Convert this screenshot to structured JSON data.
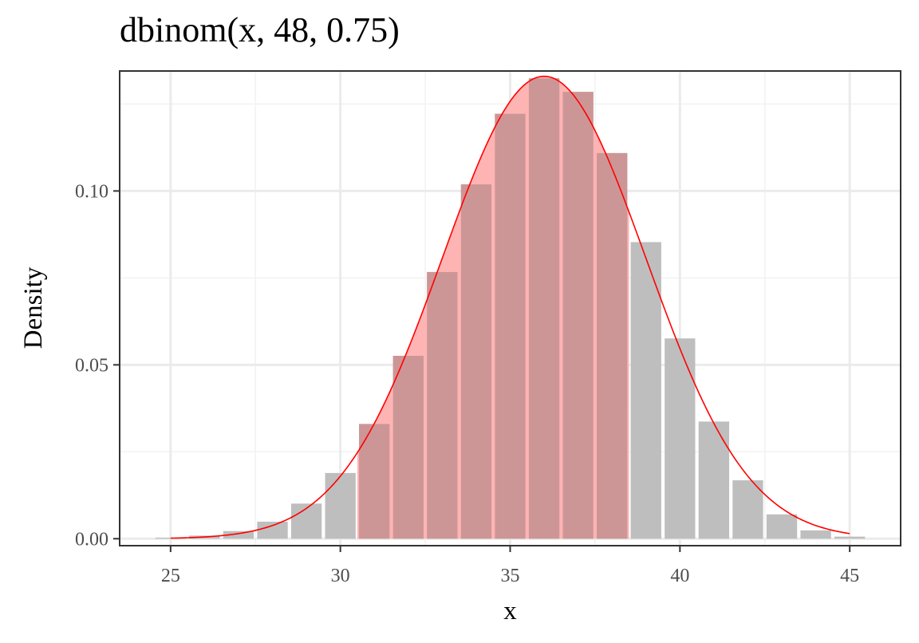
{
  "chart_data": {
    "type": "bar",
    "title": "dbinom(x, 48, 0.75)",
    "xlabel": "x",
    "ylabel": "Density",
    "xlim": [
      23.5,
      46.5
    ],
    "ylim": [
      -0.002,
      0.1345
    ],
    "x_ticks": [
      25,
      30,
      35,
      40,
      45
    ],
    "x_tick_labels": [
      "25",
      "30",
      "35",
      "40",
      "45"
    ],
    "y_ticks": [
      0.0,
      0.05,
      0.1
    ],
    "y_tick_labels": [
      "0.00",
      "0.05",
      "0.10"
    ],
    "grid": true,
    "series": [
      {
        "kind": "bar",
        "x": [
          25,
          26,
          27,
          28,
          29,
          30,
          31,
          32,
          33,
          34,
          35,
          36,
          37,
          38,
          39,
          40,
          41,
          42,
          43,
          44,
          45
        ],
        "values": [
          0.0003,
          0.0009,
          0.0022,
          0.0049,
          0.0101,
          0.0189,
          0.033,
          0.0526,
          0.0767,
          0.1019,
          0.1222,
          0.1324,
          0.1285,
          0.1109,
          0.0853,
          0.0576,
          0.0337,
          0.0168,
          0.007,
          0.0024,
          0.0006
        ],
        "color": "#bebebe"
      },
      {
        "kind": "shaded-bar",
        "x": [
          31,
          32,
          33,
          34,
          35,
          36,
          37,
          38
        ],
        "color": "#cd9696"
      },
      {
        "kind": "normal-curve",
        "mean": 36,
        "sd": 3,
        "x_range": [
          25,
          45
        ],
        "shade_range": [
          30.5,
          38.5
        ],
        "color": "#ff0000",
        "fill": "#ffb4b4"
      }
    ]
  }
}
